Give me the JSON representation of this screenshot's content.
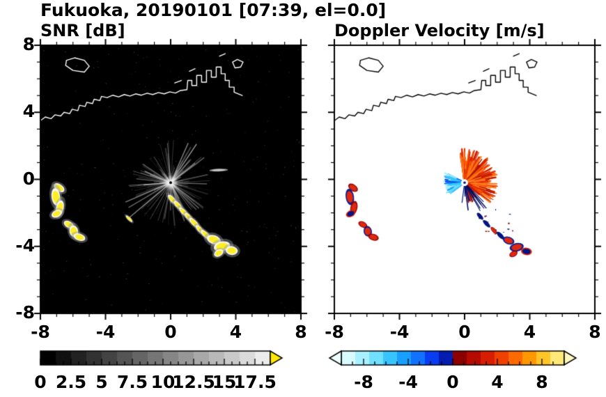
{
  "header": {
    "title": "Fukuoka, 20190101 [07:39, el=0.0]"
  },
  "chart_data": [
    {
      "type": "heatmap",
      "panel": "snr-ppi",
      "title": "SNR [dB]",
      "xlim": [
        -8,
        8
      ],
      "ylim": [
        -8,
        8
      ],
      "xticks": [
        -8,
        -4,
        0,
        4,
        8
      ],
      "yticks": [
        8,
        4,
        0,
        -4,
        -8
      ],
      "y_labels_shown": true,
      "minor_step": 1,
      "background": "#000000",
      "coast_color": "#ffffff",
      "radar_center": [
        0,
        -0.2
      ],
      "streaks": {
        "seed": 13,
        "count": 170,
        "len": [
          0.2,
          2.6
        ],
        "bright_count": 12,
        "bright_len": [
          1.4,
          3.4
        ]
      },
      "speckle": {
        "seed": 99,
        "count": 320
      },
      "center_glow": true,
      "echo_style": {
        "core": "#ffee22",
        "edge": "#ffffff",
        "halo": "#9a9a9a"
      },
      "echoes": [
        {
          "x": -6.85,
          "y": -0.5,
          "w": 0.55,
          "h": 0.3,
          "rot": -35
        },
        {
          "x": -7.05,
          "y": -1.05,
          "w": 0.4,
          "h": 0.75,
          "rot": 8
        },
        {
          "x": -6.8,
          "y": -1.7,
          "w": 0.35,
          "h": 0.65,
          "rot": -12
        },
        {
          "x": -7.0,
          "y": -2.05,
          "w": 0.5,
          "h": 0.3,
          "rot": 25
        },
        {
          "x": -6.25,
          "y": -2.7,
          "w": 0.5,
          "h": 0.28,
          "rot": -30
        },
        {
          "x": -5.95,
          "y": -3.1,
          "w": 0.4,
          "h": 0.5,
          "rot": 12
        },
        {
          "x": -5.6,
          "y": -3.45,
          "w": 0.55,
          "h": 0.3,
          "rot": -18
        },
        {
          "x": -2.55,
          "y": -2.35,
          "w": 0.4,
          "h": 0.12,
          "rot": -45
        },
        {
          "x": 0.1,
          "y": -1.2,
          "w": 0.55,
          "h": 0.2,
          "rot": -48
        },
        {
          "x": 0.45,
          "y": -1.55,
          "w": 0.5,
          "h": 0.2,
          "rot": -48
        },
        {
          "x": 0.8,
          "y": -1.95,
          "w": 0.55,
          "h": 0.2,
          "rot": -45
        },
        {
          "x": 1.1,
          "y": -2.25,
          "w": 0.45,
          "h": 0.2,
          "rot": -48
        },
        {
          "x": 1.45,
          "y": -2.6,
          "w": 0.6,
          "h": 0.22,
          "rot": -45
        },
        {
          "x": 1.8,
          "y": -3.0,
          "w": 0.5,
          "h": 0.2,
          "rot": -48
        },
        {
          "x": 2.15,
          "y": -3.3,
          "w": 0.55,
          "h": 0.22,
          "rot": -45
        },
        {
          "x": 2.65,
          "y": -3.6,
          "w": 0.65,
          "h": 0.38,
          "rot": -20
        },
        {
          "x": 3.15,
          "y": -4.0,
          "w": 0.75,
          "h": 0.42,
          "rot": 12
        },
        {
          "x": 3.75,
          "y": -4.25,
          "w": 0.55,
          "h": 0.38,
          "rot": -8
        },
        {
          "x": 2.95,
          "y": -4.4,
          "w": 0.45,
          "h": 0.28,
          "rot": 28
        },
        {
          "x": 2.95,
          "y": 0.55,
          "w": 0.85,
          "h": 0.12,
          "rot": 2,
          "core": "#c8c8c8",
          "edge": "#909090",
          "halo": null
        }
      ],
      "colorbar": {
        "range": [
          0,
          18.75
        ],
        "tick_values": [
          0,
          2.5,
          5,
          7.5,
          10,
          12.5,
          15,
          17.5
        ],
        "tick_labels": [
          "0",
          "2.5",
          "5",
          "7.5",
          "10",
          "12.5",
          "15",
          "17.5"
        ],
        "style": "grayscale",
        "cells": 15,
        "over_arrow_color": "#ffe800"
      }
    },
    {
      "type": "heatmap",
      "panel": "doppler-ppi",
      "title": "Doppler Velocity [m/s]",
      "xlim": [
        -8,
        8
      ],
      "ylim": [
        -8,
        8
      ],
      "xticks": [
        -8,
        -4,
        0,
        4,
        8
      ],
      "yticks": [
        8,
        4,
        0,
        -4,
        -8
      ],
      "y_labels_shown": false,
      "minor_step": 1,
      "background": "#ffffff",
      "coast_color": "#000000",
      "radar_center": [
        0,
        -0.2
      ],
      "center_hole": true,
      "fans": [
        {
          "seed": 11,
          "count": 320,
          "angle_deg": [
            -38,
            100
          ],
          "len": [
            0.25,
            2.05
          ],
          "width": [
            1,
            3
          ],
          "colors": [
            "#b01400",
            "#d02000",
            "#e63000",
            "#f04800",
            "#ff5c00",
            "#c81a00",
            "#ff7a1a"
          ]
        },
        {
          "seed": 17,
          "count": 70,
          "angle_deg": [
            -80,
            -30
          ],
          "len": [
            0.2,
            1.3
          ],
          "width": [
            1,
            2.5
          ],
          "colors": [
            "#c81a00",
            "#e63000",
            "#ff5c00"
          ]
        },
        {
          "seed": 21,
          "count": 95,
          "angle_deg": [
            150,
            218
          ],
          "len": [
            0.2,
            1.35
          ],
          "width": [
            1,
            3
          ],
          "colors": [
            "#30c8ff",
            "#70e0ff",
            "#a8f0ff",
            "#18a0ff",
            "#0858f0"
          ]
        },
        {
          "seed": 31,
          "count": 12,
          "angle_deg": [
            262,
            318
          ],
          "len": [
            0.5,
            2.2
          ],
          "width": [
            1,
            1.6
          ],
          "colors": [
            "#001488",
            "#000c60"
          ]
        }
      ],
      "specks": {
        "seed": 41,
        "count": 16,
        "box": [
          0.8,
          -3.6,
          3.0,
          -1.6
        ],
        "colors": [
          "#001488",
          "#8c0000"
        ]
      },
      "echo_style": {
        "core": "#e02810",
        "edge": "#8c0000",
        "halo": null
      },
      "echoes": [
        {
          "x": -6.85,
          "y": -0.5,
          "w": 0.5,
          "h": 0.28,
          "rot": -35
        },
        {
          "x": -7.05,
          "y": -1.05,
          "w": 0.38,
          "h": 0.7,
          "rot": 8,
          "edge": "#001488"
        },
        {
          "x": -6.8,
          "y": -1.7,
          "w": 0.32,
          "h": 0.6,
          "rot": -12
        },
        {
          "x": -7.0,
          "y": -2.05,
          "w": 0.45,
          "h": 0.28,
          "rot": 25,
          "core": "#001488",
          "edge": "#d81e00"
        },
        {
          "x": -6.25,
          "y": -2.7,
          "w": 0.45,
          "h": 0.25,
          "rot": -30
        },
        {
          "x": -5.95,
          "y": -3.1,
          "w": 0.38,
          "h": 0.45,
          "rot": 12,
          "edge": "#001488"
        },
        {
          "x": -5.6,
          "y": -3.45,
          "w": 0.5,
          "h": 0.28,
          "rot": -18
        },
        {
          "x": 0.95,
          "y": -2.2,
          "w": 0.4,
          "h": 0.16,
          "rot": -48,
          "core": "#001488",
          "edge": "#000c60"
        },
        {
          "x": 1.35,
          "y": -2.65,
          "w": 0.45,
          "h": 0.16,
          "rot": -45,
          "core": "#001488",
          "edge": "#000c60"
        },
        {
          "x": 1.8,
          "y": -3.05,
          "w": 0.4,
          "h": 0.16,
          "rot": -48
        },
        {
          "x": 2.2,
          "y": -3.35,
          "w": 0.45,
          "h": 0.18,
          "rot": -45,
          "core": "#001488",
          "edge": "#000c60"
        },
        {
          "x": 2.7,
          "y": -3.65,
          "w": 0.55,
          "h": 0.32,
          "rot": -20,
          "edge": "#001488"
        },
        {
          "x": 3.2,
          "y": -4.05,
          "w": 0.65,
          "h": 0.36,
          "rot": 12,
          "edge": "#001488"
        },
        {
          "x": 3.8,
          "y": -4.3,
          "w": 0.5,
          "h": 0.32,
          "rot": -8,
          "core": "#001488",
          "edge": "#d81e00"
        },
        {
          "x": 3.0,
          "y": -4.45,
          "w": 0.4,
          "h": 0.24,
          "rot": 28
        }
      ],
      "colorbar": {
        "range": [
          -10,
          10
        ],
        "tick_values": [
          -8,
          -4,
          0,
          4,
          8
        ],
        "tick_labels": [
          "-8",
          "-4",
          "0",
          "4",
          "8"
        ],
        "style": "doppler",
        "cell_colors": [
          "#d8fbff",
          "#a8f0ff",
          "#70e0ff",
          "#38c4ff",
          "#18a0ff",
          "#1272ff",
          "#0a3cf0",
          "#041cb0",
          "#8c0000",
          "#b40a00",
          "#d81e00",
          "#f04000",
          "#ff6a00",
          "#ff9800",
          "#ffc428",
          "#ffe878"
        ],
        "under_arrow_color": "#eeffff",
        "over_arrow_color": "#fff8c0"
      }
    }
  ],
  "coastline": {
    "main": [
      [
        -8,
        3.5
      ],
      [
        -7.7,
        3.72
      ],
      [
        -7.35,
        3.62
      ],
      [
        -7.1,
        3.85
      ],
      [
        -6.75,
        3.78
      ],
      [
        -6.55,
        4.0
      ],
      [
        -6.2,
        3.92
      ],
      [
        -6.05,
        4.18
      ],
      [
        -5.7,
        4.1
      ],
      [
        -5.6,
        4.42
      ],
      [
        -5.25,
        4.35
      ],
      [
        -5.15,
        4.6
      ],
      [
        -4.8,
        4.52
      ],
      [
        -4.7,
        4.78
      ],
      [
        -4.35,
        4.7
      ],
      [
        -4.25,
        4.95
      ],
      [
        -3.9,
        4.88
      ],
      [
        -3.55,
        5.02
      ],
      [
        -3.2,
        4.92
      ],
      [
        -2.85,
        5.06
      ],
      [
        -2.5,
        4.97
      ],
      [
        -2.15,
        5.1
      ],
      [
        -1.8,
        5.02
      ],
      [
        -1.45,
        5.14
      ],
      [
        -1.1,
        5.06
      ],
      [
        -0.75,
        5.18
      ],
      [
        -0.4,
        5.1
      ],
      [
        -0.05,
        5.22
      ],
      [
        0.3,
        5.15
      ],
      [
        0.6,
        5.3
      ],
      [
        1.0,
        5.35
      ],
      [
        1.05,
        5.9
      ],
      [
        1.3,
        5.9
      ],
      [
        1.3,
        5.6
      ],
      [
        1.6,
        5.6
      ],
      [
        1.6,
        6.2
      ],
      [
        1.9,
        6.2
      ],
      [
        1.9,
        5.8
      ],
      [
        2.2,
        5.8
      ],
      [
        2.2,
        6.5
      ],
      [
        2.5,
        6.5
      ],
      [
        2.5,
        6.1
      ],
      [
        2.8,
        6.1
      ],
      [
        2.8,
        6.7
      ],
      [
        3.1,
        6.7
      ],
      [
        3.1,
        6.3
      ],
      [
        3.35,
        6.3
      ],
      [
        3.35,
        5.9
      ],
      [
        3.6,
        5.9
      ],
      [
        3.6,
        5.5
      ],
      [
        3.9,
        5.5
      ],
      [
        3.9,
        5.2
      ],
      [
        4.4,
        5.0
      ]
    ],
    "islands": [
      [
        [
          -6.4,
          7.1
        ],
        [
          -5.9,
          7.25
        ],
        [
          -5.3,
          7.1
        ],
        [
          -5.0,
          6.75
        ],
        [
          -5.3,
          6.4
        ],
        [
          -6.0,
          6.5
        ],
        [
          -6.45,
          6.8
        ]
      ],
      [
        [
          3.8,
          7.0
        ],
        [
          4.1,
          7.15
        ],
        [
          4.45,
          7.0
        ],
        [
          4.3,
          6.7
        ],
        [
          3.95,
          6.65
        ]
      ]
    ],
    "breakwaters": [
      [
        [
          0.25,
          5.75
        ],
        [
          0.65,
          5.9
        ]
      ],
      [
        [
          1.15,
          6.45
        ],
        [
          1.5,
          6.6
        ]
      ],
      [
        [
          3.0,
          7.35
        ],
        [
          3.35,
          7.5
        ]
      ]
    ]
  }
}
